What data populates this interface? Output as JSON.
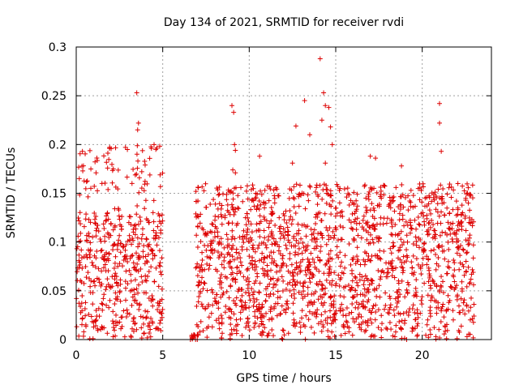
{
  "chart_data": {
    "type": "scatter",
    "title": "Day 134 of 2021, SRMTID for receiver rvdi",
    "xlabel": "GPS time / hours",
    "ylabel": "SRMTID / TECUs",
    "xlim": [
      0,
      24
    ],
    "ylim": [
      0,
      0.3
    ],
    "x_ticks": [
      0,
      5,
      10,
      15,
      20
    ],
    "y_ticks": [
      0,
      0.05,
      0.1,
      0.15,
      0.2,
      0.25,
      0.3
    ],
    "x_tick_labels": [
      "0",
      "5",
      "10",
      "15",
      "20"
    ],
    "y_tick_labels": [
      "0",
      "0.05",
      "0.1",
      "0.15",
      "0.2",
      "0.25",
      "0.3"
    ],
    "grid": true,
    "marker": "+",
    "color": "#dd0000",
    "density_segments": [
      {
        "x_range": [
          0,
          5.0
        ],
        "typical_range": [
          0.0,
          0.13
        ],
        "max_y": 0.2,
        "count": 520
      },
      {
        "x_range": [
          6.5,
          7.2
        ],
        "typical_range": [
          0.0,
          0.005
        ],
        "max_y": 0.005,
        "count": 12
      },
      {
        "x_range": [
          6.9,
          15.0
        ],
        "typical_range": [
          0.0,
          0.13
        ],
        "max_y": 0.16,
        "count": 900
      },
      {
        "x_range": [
          15.0,
          23.0
        ],
        "typical_range": [
          0.0,
          0.13
        ],
        "max_y": 0.16,
        "count": 820
      }
    ],
    "outliers": [
      {
        "x": 3.5,
        "y": 0.253
      },
      {
        "x": 3.6,
        "y": 0.222
      },
      {
        "x": 3.55,
        "y": 0.215
      },
      {
        "x": 4.5,
        "y": 0.2
      },
      {
        "x": 4.6,
        "y": 0.195
      },
      {
        "x": 9.0,
        "y": 0.24
      },
      {
        "x": 9.1,
        "y": 0.233
      },
      {
        "x": 9.15,
        "y": 0.2
      },
      {
        "x": 9.2,
        "y": 0.194
      },
      {
        "x": 9.05,
        "y": 0.174
      },
      {
        "x": 9.2,
        "y": 0.171
      },
      {
        "x": 10.6,
        "y": 0.188
      },
      {
        "x": 12.5,
        "y": 0.181
      },
      {
        "x": 12.7,
        "y": 0.219
      },
      {
        "x": 13.2,
        "y": 0.245
      },
      {
        "x": 13.5,
        "y": 0.21
      },
      {
        "x": 14.1,
        "y": 0.288
      },
      {
        "x": 14.3,
        "y": 0.253
      },
      {
        "x": 14.4,
        "y": 0.24
      },
      {
        "x": 14.6,
        "y": 0.238
      },
      {
        "x": 14.2,
        "y": 0.225
      },
      {
        "x": 14.7,
        "y": 0.218
      },
      {
        "x": 14.8,
        "y": 0.2
      },
      {
        "x": 14.4,
        "y": 0.181
      },
      {
        "x": 17.0,
        "y": 0.188
      },
      {
        "x": 17.3,
        "y": 0.186
      },
      {
        "x": 18.8,
        "y": 0.178
      },
      {
        "x": 21.0,
        "y": 0.242
      },
      {
        "x": 21.0,
        "y": 0.222
      },
      {
        "x": 21.1,
        "y": 0.193
      },
      {
        "x": 19.1,
        "y": 0.0
      },
      {
        "x": 6.6,
        "y": 0.0
      },
      {
        "x": 6.9,
        "y": 0.0
      },
      {
        "x": 7.0,
        "y": 0.0
      }
    ]
  }
}
